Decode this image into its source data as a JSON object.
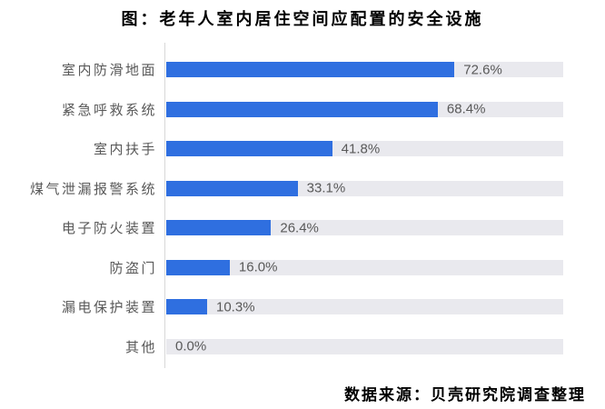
{
  "title": "图：老年人室内居住空间应配置的安全设施",
  "source": "数据来源：贝壳研究院调查整理",
  "colors": {
    "bar": "#2F6FE0",
    "track": "#E9E9EE",
    "axis": "#D8D8D8",
    "label": "#595959",
    "title": "#000000"
  },
  "chart_data": {
    "type": "bar",
    "orientation": "horizontal",
    "title": "图：老年人室内居住空间应配置的安全设施",
    "categories": [
      "室内防滑地面",
      "紧急呼救系统",
      "室内扶手",
      "煤气泄漏报警系统",
      "电子防火装置",
      "防盗门",
      "漏电保护装置",
      "其他"
    ],
    "values": [
      72.6,
      68.4,
      41.8,
      33.1,
      26.4,
      16.0,
      10.3,
      0.0
    ],
    "value_labels": [
      "72.6%",
      "68.4%",
      "41.8%",
      "33.1%",
      "26.4%",
      "16.0%",
      "10.3%",
      "0.0%"
    ],
    "unit": "%",
    "xlim": [
      0,
      100
    ],
    "grid": false,
    "legend": false,
    "track_represents": "100%"
  }
}
